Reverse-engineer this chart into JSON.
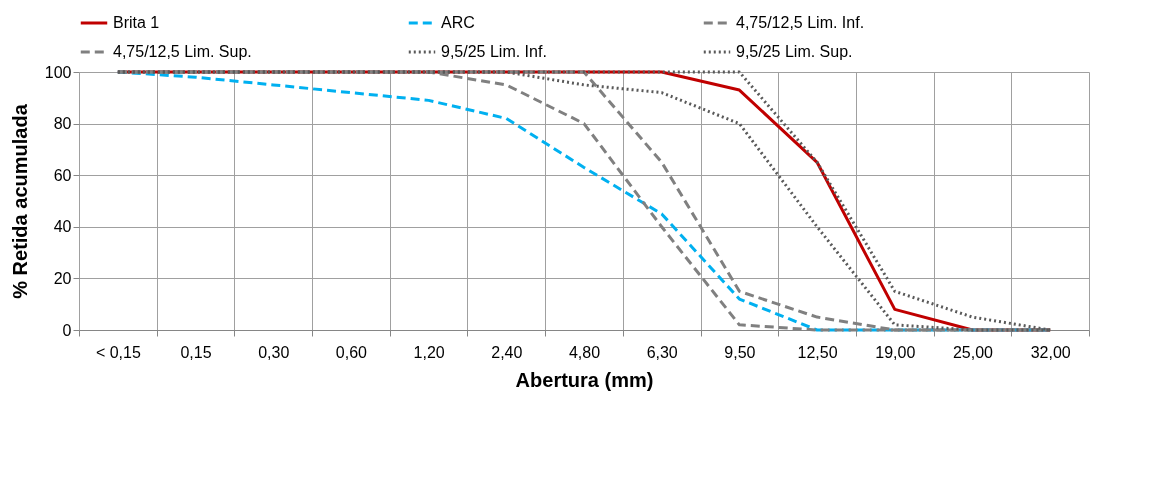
{
  "chart_data": {
    "type": "line",
    "xlabel": "Abertura (mm)",
    "ylabel": "% Retida acumulada",
    "categories": [
      "< 0,15",
      "0,15",
      "0,30",
      "0,60",
      "1,20",
      "2,40",
      "4,80",
      "6,30",
      "9,50",
      "12,50",
      "19,00",
      "25,00",
      "32,00"
    ],
    "ylim": [
      0,
      100
    ],
    "yticks": [
      0,
      20,
      40,
      60,
      80,
      100
    ],
    "grid": true,
    "legend": "top",
    "marker": "none",
    "series": [
      {
        "name": "Brita 1",
        "color": "#c00000",
        "line_style": "solid",
        "values": [
          100,
          100,
          100,
          100,
          100,
          100,
          100,
          100,
          93,
          65,
          8,
          0,
          0
        ]
      },
      {
        "name": "ARC",
        "color": "#00b0f0",
        "line_style": "dashed",
        "values": [
          100,
          98,
          95,
          92,
          89,
          82,
          63,
          45,
          12,
          0,
          0,
          0,
          0
        ]
      },
      {
        "name": "4,75/12,5 Lim. Inf.",
        "color": "#808080",
        "line_style": "dashed",
        "values": [
          100,
          100,
          100,
          100,
          100,
          95,
          80,
          40,
          2,
          0,
          0,
          0,
          0
        ]
      },
      {
        "name": "4,75/12,5 Lim. Sup.",
        "color": "#808080",
        "line_style": "dashed",
        "values": [
          100,
          100,
          100,
          100,
          100,
          100,
          100,
          65,
          15,
          5,
          0,
          0,
          0
        ]
      },
      {
        "name": "9,5/25 Lim. Inf.",
        "color": "#595959",
        "line_style": "dotted",
        "values": [
          100,
          100,
          100,
          100,
          100,
          100,
          95,
          92,
          80,
          40,
          2,
          0,
          0
        ]
      },
      {
        "name": "9,5/25 Lim. Sup.",
        "color": "#595959",
        "line_style": "dotted",
        "values": [
          100,
          100,
          100,
          100,
          100,
          100,
          100,
          100,
          100,
          65,
          15,
          5,
          0
        ]
      }
    ]
  }
}
